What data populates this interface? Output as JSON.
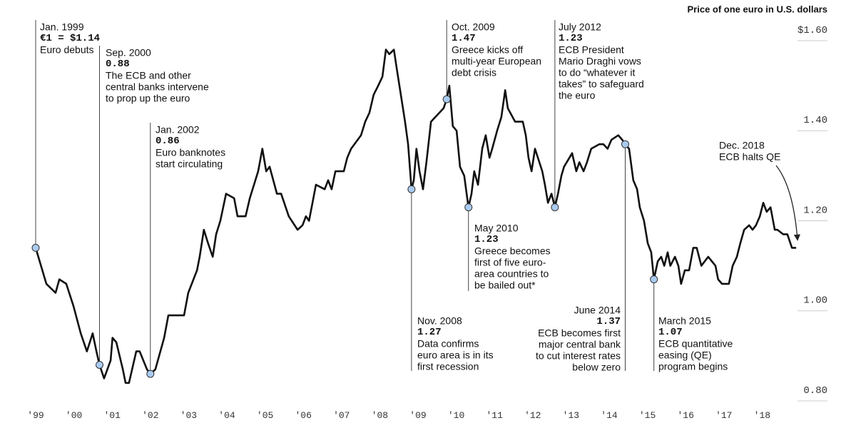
{
  "chart_data": {
    "type": "line",
    "title": "Price of one euro in U.S. dollars",
    "color": "#111111",
    "xlim": [
      1999,
      2019.7
    ],
    "ylim": [
      0.8,
      1.6
    ],
    "xticks": [
      {
        "value": 1999,
        "label": "'99"
      },
      {
        "value": 2000,
        "label": "'00"
      },
      {
        "value": 2001,
        "label": "'01"
      },
      {
        "value": 2002,
        "label": "'02"
      },
      {
        "value": 2003,
        "label": "'03"
      },
      {
        "value": 2004,
        "label": "'04"
      },
      {
        "value": 2005,
        "label": "'05"
      },
      {
        "value": 2006,
        "label": "'06"
      },
      {
        "value": 2007,
        "label": "'07"
      },
      {
        "value": 2008,
        "label": "'08"
      },
      {
        "value": 2009,
        "label": "'09"
      },
      {
        "value": 2010,
        "label": "'10"
      },
      {
        "value": 2011,
        "label": "'11"
      },
      {
        "value": 2012,
        "label": "'12"
      },
      {
        "value": 2013,
        "label": "'13"
      },
      {
        "value": 2014,
        "label": "'14"
      },
      {
        "value": 2015,
        "label": "'15"
      },
      {
        "value": 2016,
        "label": "'16"
      },
      {
        "value": 2017,
        "label": "'17"
      },
      {
        "value": 2018,
        "label": "'18"
      }
    ],
    "yticks": [
      {
        "value": 1.6,
        "label": "$1.60"
      },
      {
        "value": 1.4,
        "label": "1.40"
      },
      {
        "value": 1.2,
        "label": "1.20"
      },
      {
        "value": 1.0,
        "label": "1.00"
      },
      {
        "value": 0.8,
        "label": "0.80"
      }
    ],
    "x": [
      1999.0,
      1999.28,
      1999.52,
      1999.62,
      1999.8,
      1999.99,
      2000.18,
      2000.34,
      2000.49,
      2000.59,
      2000.67,
      2000.79,
      2000.96,
      2001.01,
      2001.11,
      2001.28,
      2001.35,
      2001.44,
      2001.63,
      2001.72,
      2001.91,
      2002.0,
      2002.13,
      2002.36,
      2002.47,
      2002.73,
      2002.88,
      2002.99,
      2003.22,
      2003.29,
      2003.4,
      2003.51,
      2003.63,
      2003.72,
      2003.83,
      2003.98,
      2004.19,
      2004.28,
      2004.49,
      2004.6,
      2004.82,
      2004.93,
      2005.03,
      2005.12,
      2005.31,
      2005.42,
      2005.62,
      2005.85,
      2005.98,
      2006.07,
      2006.15,
      2006.24,
      2006.33,
      2006.56,
      2006.65,
      2006.74,
      2006.84,
      2007.06,
      2007.15,
      2007.25,
      2007.51,
      2007.62,
      2007.73,
      2007.84,
      2007.96,
      2008.07,
      2008.16,
      2008.25,
      2008.37,
      2008.44,
      2008.57,
      2008.66,
      2008.74,
      2008.83,
      2008.89,
      2008.96,
      2009.04,
      2009.13,
      2009.22,
      2009.34,
      2009.56,
      2009.67,
      2009.75,
      2009.82,
      2009.91,
      2010.01,
      2010.1,
      2010.21,
      2010.32,
      2010.4,
      2010.47,
      2010.57,
      2010.68,
      2010.77,
      2010.87,
      2010.94,
      2011.07,
      2011.18,
      2011.28,
      2011.35,
      2011.54,
      2011.74,
      2011.82,
      2011.89,
      2011.97,
      2012.06,
      2012.25,
      2012.32,
      2012.4,
      2012.49,
      2012.58,
      2012.66,
      2012.75,
      2012.82,
      2013.03,
      2013.14,
      2013.22,
      2013.33,
      2013.42,
      2013.53,
      2013.74,
      2013.85,
      2013.96,
      2014.06,
      2014.24,
      2014.34,
      2014.42,
      2014.52,
      2014.63,
      2014.73,
      2014.8,
      2014.91,
      2015.01,
      2015.1,
      2015.17,
      2015.27,
      2015.36,
      2015.44,
      2015.53,
      2015.6,
      2015.72,
      2015.81,
      2015.88,
      2015.98,
      2016.09,
      2016.2,
      2016.29,
      2016.41,
      2016.59,
      2016.78,
      2016.85,
      2016.95,
      2017.04,
      2017.13,
      2017.23,
      2017.34,
      2017.43,
      2017.53,
      2017.66,
      2017.75,
      2017.84,
      2017.94,
      2018.03,
      2018.12,
      2018.22,
      2018.33,
      2018.4,
      2018.55,
      2018.66,
      2018.78,
      2018.89
    ],
    "values": [
      1.14,
      1.06,
      1.04,
      1.07,
      1.06,
      1.01,
      0.95,
      0.91,
      0.95,
      0.91,
      0.88,
      0.85,
      0.89,
      0.94,
      0.93,
      0.87,
      0.84,
      0.84,
      0.91,
      0.91,
      0.87,
      0.86,
      0.87,
      0.94,
      0.99,
      0.99,
      0.99,
      1.04,
      1.09,
      1.12,
      1.18,
      1.15,
      1.12,
      1.17,
      1.2,
      1.26,
      1.25,
      1.21,
      1.21,
      1.25,
      1.31,
      1.36,
      1.31,
      1.32,
      1.26,
      1.26,
      1.21,
      1.18,
      1.19,
      1.21,
      1.2,
      1.24,
      1.28,
      1.27,
      1.29,
      1.27,
      1.31,
      1.31,
      1.34,
      1.36,
      1.39,
      1.42,
      1.44,
      1.48,
      1.5,
      1.52,
      1.58,
      1.57,
      1.58,
      1.54,
      1.47,
      1.42,
      1.37,
      1.27,
      1.29,
      1.36,
      1.31,
      1.27,
      1.33,
      1.42,
      1.44,
      1.45,
      1.47,
      1.5,
      1.41,
      1.4,
      1.32,
      1.3,
      1.23,
      1.26,
      1.31,
      1.28,
      1.36,
      1.39,
      1.34,
      1.36,
      1.4,
      1.43,
      1.49,
      1.45,
      1.42,
      1.42,
      1.39,
      1.34,
      1.31,
      1.36,
      1.31,
      1.28,
      1.24,
      1.26,
      1.23,
      1.26,
      1.3,
      1.32,
      1.35,
      1.31,
      1.33,
      1.31,
      1.33,
      1.36,
      1.37,
      1.37,
      1.36,
      1.38,
      1.39,
      1.38,
      1.37,
      1.36,
      1.29,
      1.27,
      1.23,
      1.2,
      1.15,
      1.13,
      1.07,
      1.11,
      1.12,
      1.1,
      1.13,
      1.1,
      1.12,
      1.1,
      1.06,
      1.09,
      1.09,
      1.14,
      1.14,
      1.1,
      1.12,
      1.1,
      1.07,
      1.06,
      1.06,
      1.06,
      1.1,
      1.12,
      1.15,
      1.18,
      1.19,
      1.18,
      1.19,
      1.21,
      1.24,
      1.22,
      1.23,
      1.18,
      1.18,
      1.17,
      1.17,
      1.14,
      1.14
    ],
    "annotations": [
      {
        "date": "Jan. 1999",
        "x": 1999.0,
        "value": 1.14,
        "value_label": "€1 = $1.14",
        "text": [
          "Euro debuts"
        ]
      },
      {
        "date": "Sep. 2000",
        "x": 2000.67,
        "value": 0.88,
        "text": [
          "The ECB and other",
          "central banks intervene",
          "to prop up the euro"
        ]
      },
      {
        "date": "Jan. 2002",
        "x": 2002.0,
        "value": 0.86,
        "text": [
          "Euro banknotes",
          "start circulating"
        ]
      },
      {
        "date": "Nov. 2008",
        "x": 2008.83,
        "value": 1.27,
        "text": [
          "Data confirms",
          "euro area is in its",
          "first recession"
        ]
      },
      {
        "date": "Oct. 2009",
        "x": 2009.75,
        "value": 1.47,
        "text": [
          "Greece kicks off",
          "multi-year European",
          "debt crisis"
        ]
      },
      {
        "date": "May 2010",
        "x": 2010.32,
        "value": 1.23,
        "text": [
          "Greece becomes",
          "first of five euro-",
          "area countries to",
          "be bailed out*"
        ]
      },
      {
        "date": "July 2012",
        "x": 2012.58,
        "value": 1.23,
        "text": [
          "ECB President",
          "Mario Draghi vows",
          "to do “whatever it",
          "takes” to safeguard",
          "the euro"
        ]
      },
      {
        "date": "June 2014",
        "x": 2014.42,
        "value": 1.37,
        "text": [
          "ECB becomes first",
          "major central bank",
          "to cut interest rates",
          "below zero"
        ]
      },
      {
        "date": "March 2015",
        "x": 2015.17,
        "value": 1.07,
        "text": [
          "ECB quantitative",
          "easing (QE)",
          "program begins"
        ]
      }
    ],
    "note": [
      "Dec. 2018",
      "ECB halts QE"
    ]
  }
}
